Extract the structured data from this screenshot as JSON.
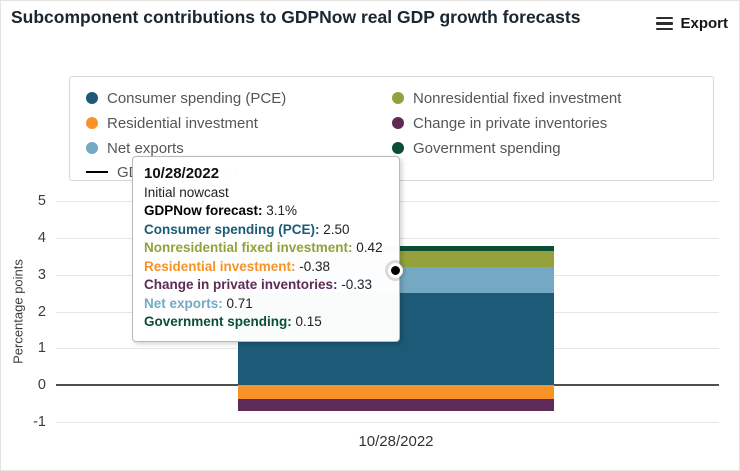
{
  "header": {
    "title": "Subcomponent contributions to GDPNow real GDP growth forecasts",
    "export_label": "Export"
  },
  "legend": {
    "items": [
      {
        "label": "Consumer spending (PCE)",
        "color": "#1c5a77",
        "marker": "circle"
      },
      {
        "label": "Nonresidential fixed investment",
        "color": "#95a13c",
        "marker": "circle"
      },
      {
        "label": "Residential investment",
        "color": "#f79327",
        "marker": "circle"
      },
      {
        "label": "Change in private inventories",
        "color": "#5e2a56",
        "marker": "circle"
      },
      {
        "label": "Net exports",
        "color": "#74a9c4",
        "marker": "circle"
      },
      {
        "label": "Government spending",
        "color": "#0c4e33",
        "marker": "circle"
      },
      {
        "label": "GDPNow forecast",
        "color": "#000000",
        "marker": "line"
      }
    ]
  },
  "tooltip": {
    "title": "10/28/2022",
    "subtitle": "Initial nowcast",
    "rows": [
      {
        "label": "GDPNow forecast",
        "value": "3.1%",
        "color": "#000000"
      },
      {
        "label": "Consumer spending (PCE)",
        "value": "2.50",
        "color": "#1c5a77"
      },
      {
        "label": "Nonresidential fixed investment",
        "value": "0.42",
        "color": "#95a13c"
      },
      {
        "label": "Residential investment",
        "value": "-0.38",
        "color": "#f79327"
      },
      {
        "label": "Change in private inventories",
        "value": "-0.33",
        "color": "#5e2a56"
      },
      {
        "label": "Net exports",
        "value": "0.71",
        "color": "#74a9c4"
      },
      {
        "label": "Government spending",
        "value": "0.15",
        "color": "#0c4e33"
      }
    ]
  },
  "chart_data": {
    "type": "bar",
    "stacked": true,
    "title": "Subcomponent contributions to GDPNow real GDP growth forecasts",
    "categories": [
      "10/28/2022"
    ],
    "series": [
      {
        "name": "Consumer spending (PCE)",
        "values": [
          2.5
        ],
        "color": "#1c5a77"
      },
      {
        "name": "Net exports",
        "values": [
          0.71
        ],
        "color": "#74a9c4"
      },
      {
        "name": "Nonresidential fixed investment",
        "values": [
          0.42
        ],
        "color": "#95a13c"
      },
      {
        "name": "Government spending",
        "values": [
          0.15
        ],
        "color": "#0c4e33"
      },
      {
        "name": "Residential investment",
        "values": [
          -0.38
        ],
        "color": "#f79327"
      },
      {
        "name": "Change in private inventories",
        "values": [
          -0.33
        ],
        "color": "#5e2a56"
      }
    ],
    "line_series": {
      "name": "GDPNow forecast",
      "values": [
        3.1
      ],
      "color": "#000000",
      "marker": "black-dot-white-ring"
    },
    "xlabel": "",
    "ylabel": "Percentage points",
    "ylim": [
      -1,
      5
    ],
    "yticks": [
      5,
      4,
      3,
      2,
      1,
      0,
      -1
    ],
    "grid": true,
    "legend_position": "top"
  }
}
